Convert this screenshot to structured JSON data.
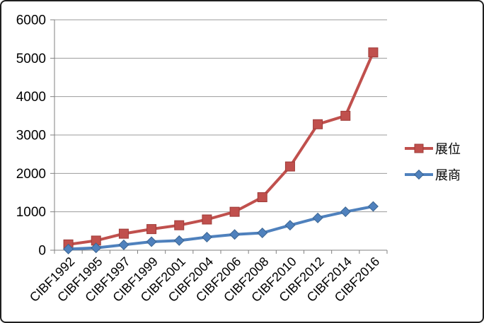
{
  "window": {
    "background": "#ffffff",
    "border_color": "#1f1f1f"
  },
  "chart_data": {
    "type": "line",
    "title": "",
    "xlabel": "",
    "ylabel": "",
    "categories": [
      "CIBF1992",
      "CIBF1995",
      "CIBF1997",
      "CIBF1999",
      "CIBF2001",
      "CIBF2004",
      "CIBF2006",
      "CIBF2008",
      "CIBF2010",
      "CIBF2012",
      "CIBF2014",
      "CIBF2016"
    ],
    "series": [
      {
        "name": "展位",
        "marker": "square",
        "color": "#C0504D",
        "marker_border": "#9E3B38",
        "values": [
          150,
          250,
          430,
          550,
          650,
          800,
          1000,
          1380,
          2180,
          3280,
          3500,
          5150
        ]
      },
      {
        "name": "展商",
        "marker": "diamond",
        "color": "#4F81BD",
        "marker_border": "#3A6491",
        "values": [
          30,
          60,
          140,
          220,
          250,
          340,
          410,
          450,
          650,
          840,
          1000,
          1140
        ]
      }
    ],
    "ylim": [
      0,
      6000
    ],
    "y_ticks": [
      0,
      1000,
      2000,
      3000,
      4000,
      5000,
      6000
    ],
    "grid": true,
    "legend_position": "right",
    "x_labels_rotation_deg": -45,
    "colors": {
      "gridline": "#9B9B9B",
      "axis": "#808080",
      "text": "#000000"
    }
  }
}
